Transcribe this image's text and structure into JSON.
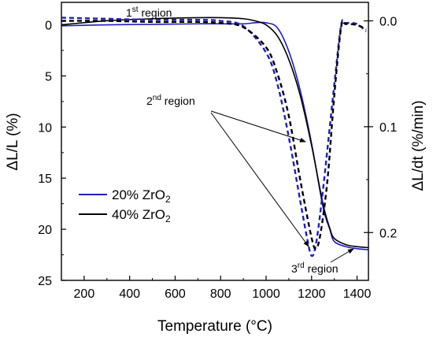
{
  "chart_data": {
    "type": "line",
    "xlabel": "Temperature (°C)",
    "ylabel_left": "ΔL/L (%)",
    "ylabel_right": "ΔL/dt (%/min)",
    "xlim": [
      100,
      1450
    ],
    "ylim_left": [
      25,
      -2.2
    ],
    "ylim_right": [
      0.2452,
      -0.0175
    ],
    "x_ticks": [
      200,
      400,
      600,
      800,
      1000,
      1200,
      1400
    ],
    "x_tick_labels": [
      "200",
      "400",
      "600",
      "800",
      "1000",
      "1200",
      "1400"
    ],
    "y_left_ticks": [
      0,
      5,
      10,
      15,
      20,
      25
    ],
    "y_left_tick_labels": [
      "0",
      "5",
      "10",
      "15",
      "20",
      "25"
    ],
    "y_right_ticks": [
      0.0,
      0.1,
      0.2
    ],
    "y_right_tick_labels": [
      "0.0",
      "0.1",
      "0.2"
    ],
    "legend": {
      "placement": "lower-left",
      "items": [
        {
          "prefix": "20% ZrO",
          "sub": "2",
          "color": "#1f1fbf"
        },
        {
          "prefix": "40% ZrO",
          "sub": "2",
          "color": "#000000"
        }
      ]
    },
    "annotations": [
      {
        "num": "1",
        "sup": "st",
        "text": " region"
      },
      {
        "num": "2",
        "sup": "nd",
        "text": " region"
      },
      {
        "num": "3",
        "sup": "rd",
        "text": " region"
      }
    ],
    "series": [
      {
        "name": "20% ZrO2",
        "kind": "shrinkage",
        "axis": "left",
        "color": "#1f1fbf",
        "dashed": false,
        "x": [
          100,
          300,
          500,
          700,
          800,
          900,
          950,
          1000,
          1050,
          1100,
          1150,
          1200,
          1250,
          1280,
          1300,
          1350,
          1400,
          1450
        ],
        "y": [
          0.1,
          0.0,
          -0.05,
          -0.1,
          -0.1,
          -0.1,
          -0.2,
          -0.2,
          0.3,
          2.6,
          6.4,
          11.6,
          17.8,
          20.0,
          21.2,
          21.7,
          21.9,
          22.0
        ]
      },
      {
        "name": "40% ZrO2",
        "kind": "shrinkage",
        "axis": "left",
        "color": "#000000",
        "dashed": false,
        "x": [
          100,
          300,
          500,
          700,
          800,
          900,
          950,
          1000,
          1050,
          1100,
          1150,
          1200,
          1250,
          1280,
          1300,
          1350,
          1400,
          1450
        ],
        "y": [
          0.0,
          -0.4,
          -0.6,
          -0.7,
          -0.7,
          -0.6,
          -0.4,
          0.0,
          1.1,
          3.4,
          6.9,
          11.8,
          17.5,
          19.9,
          20.9,
          21.5,
          21.7,
          21.8
        ]
      },
      {
        "name": "20% ZrO2 rate",
        "kind": "rate",
        "axis": "right",
        "color": "#1f1fbf",
        "dashed": true,
        "x": [
          100,
          300,
          500,
          700,
          800,
          900,
          1000,
          1050,
          1100,
          1150,
          1180,
          1200,
          1220,
          1250,
          1300,
          1330,
          1350,
          1400,
          1440
        ],
        "y": [
          -0.003,
          -0.002,
          -0.001,
          -0.001,
          0.0,
          0.005,
          0.03,
          0.06,
          0.11,
          0.17,
          0.205,
          0.222,
          0.21,
          0.16,
          0.06,
          0.004,
          0.002,
          0.003,
          0.01
        ]
      },
      {
        "name": "40% ZrO2 rate",
        "kind": "rate",
        "axis": "right",
        "color": "#000000",
        "dashed": true,
        "x": [
          100,
          300,
          500,
          700,
          800,
          900,
          1000,
          1050,
          1100,
          1150,
          1200,
          1220,
          1240,
          1270,
          1300,
          1330,
          1350,
          1400,
          1440
        ],
        "y": [
          0.0,
          0.0,
          0.001,
          0.001,
          0.002,
          0.006,
          0.025,
          0.05,
          0.09,
          0.15,
          0.205,
          0.215,
          0.2,
          0.15,
          0.07,
          0.006,
          0.003,
          0.004,
          0.008
        ]
      }
    ]
  }
}
